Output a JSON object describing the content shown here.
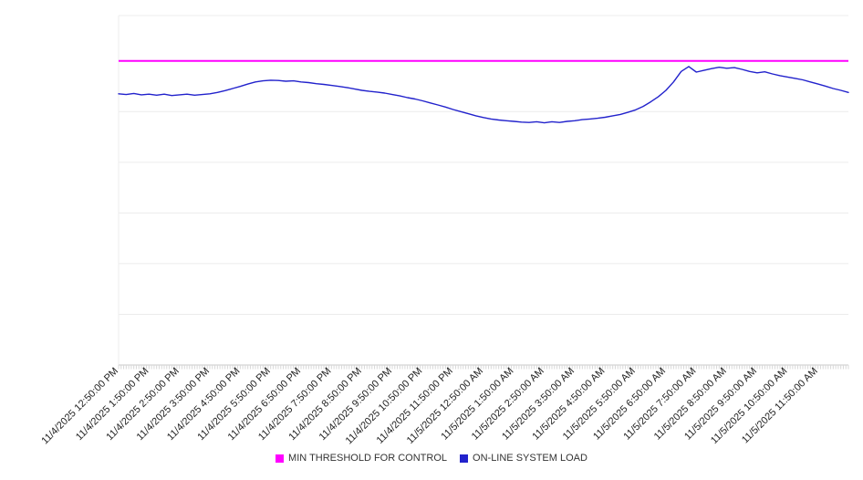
{
  "chart_data": {
    "type": "line",
    "title": "",
    "xlabel": "",
    "ylabel": "",
    "y_axis_labels_visible": false,
    "ylim": [
      0,
      100
    ],
    "grid_values": [
      0,
      14.5,
      29,
      43.5,
      58,
      72.5,
      87
    ],
    "x_hours_span": 24,
    "x_minor_ticks_per_hour": 12,
    "x_tick_labels": [
      "11/4/2025 12:50:00 PM",
      "11/4/2025 1:50:00 PM",
      "11/4/2025 2:50:00 PM",
      "11/4/2025 3:50:00 PM",
      "11/4/2025 4:50:00 PM",
      "11/4/2025 5:50:00 PM",
      "11/4/2025 6:50:00 PM",
      "11/4/2025 7:50:00 PM",
      "11/4/2025 8:50:00 PM",
      "11/4/2025 9:50:00 PM",
      "11/4/2025 10:50:00 PM",
      "11/4/2025 11:50:00 PM",
      "11/5/2025 12:50:00 AM",
      "11/5/2025 1:50:00 AM",
      "11/5/2025 2:50:00 AM",
      "11/5/2025 3:50:00 AM",
      "11/5/2025 4:50:00 AM",
      "11/5/2025 5:50:00 AM",
      "11/5/2025 6:50:00 AM",
      "11/5/2025 7:50:00 AM",
      "11/5/2025 8:50:00 AM",
      "11/5/2025 9:50:00 AM",
      "11/5/2025 10:50:00 AM",
      "11/5/2025 11:50:00 AM"
    ],
    "legend_position": "bottom-center",
    "series": [
      {
        "name": "MIN THRESHOLD FOR CONTROL",
        "color": "#ff00ff",
        "style": "threshold",
        "value": 87
      },
      {
        "name": "ON-LINE SYSTEM LOAD",
        "color": "#2222cc",
        "style": "line",
        "x_step_hours": 0.25,
        "values": [
          77.6,
          77.4,
          77.7,
          77.3,
          77.5,
          77.2,
          77.5,
          77.1,
          77.3,
          77.5,
          77.2,
          77.4,
          77.6,
          78.0,
          78.5,
          79.1,
          79.7,
          80.4,
          81.0,
          81.3,
          81.5,
          81.4,
          81.2,
          81.3,
          81.0,
          80.8,
          80.5,
          80.3,
          80.0,
          79.7,
          79.4,
          79.0,
          78.6,
          78.3,
          78.1,
          77.8,
          77.4,
          77.0,
          76.5,
          76.1,
          75.6,
          75.0,
          74.4,
          73.8,
          73.1,
          72.5,
          71.9,
          71.3,
          70.8,
          70.4,
          70.1,
          69.9,
          69.7,
          69.5,
          69.4,
          69.6,
          69.3,
          69.6,
          69.4,
          69.7,
          69.9,
          70.2,
          70.4,
          70.6,
          70.9,
          71.3,
          71.7,
          72.3,
          73.0,
          74.0,
          75.3,
          76.8,
          78.6,
          81.0,
          84.0,
          85.4,
          83.8,
          84.3,
          84.8,
          85.2,
          84.9,
          85.1,
          84.6,
          84.0,
          83.6,
          83.9,
          83.3,
          82.8,
          82.4,
          82.0,
          81.6,
          81.0,
          80.4,
          79.8,
          79.1,
          78.6,
          78.0
        ]
      }
    ],
    "colors": {
      "grid": "#ececec",
      "axis": "#c8c8c8",
      "minor_tick": "#d8d8d8",
      "tick_label": "#222222"
    }
  }
}
